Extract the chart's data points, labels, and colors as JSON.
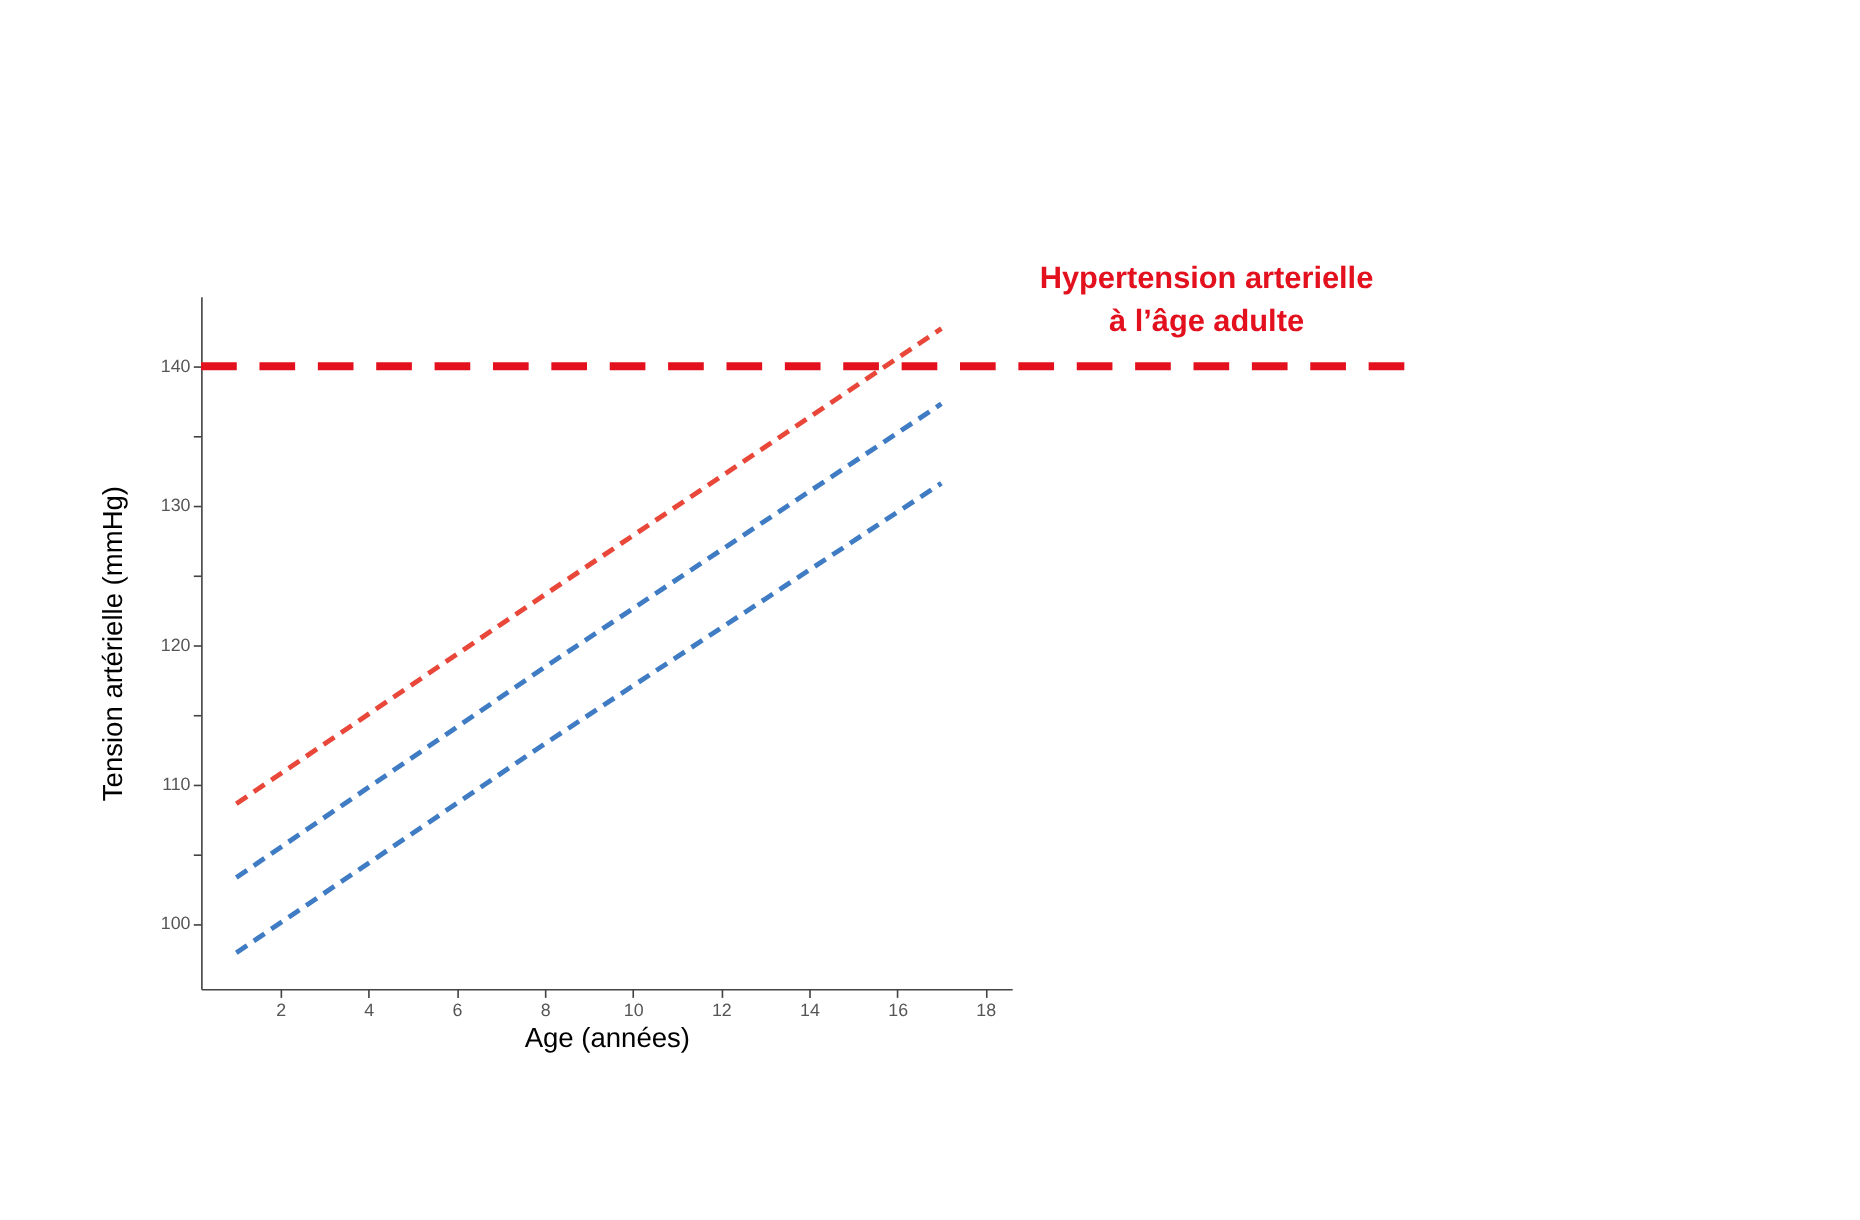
{
  "chart_data": {
    "type": "line",
    "xlabel": "Age (années)",
    "ylabel": "Tension artérielle (mmHg)",
    "line_style": "dashed",
    "marker": "none",
    "grid": false,
    "xlim": [
      0.2,
      18.6
    ],
    "xticks": [
      2,
      4,
      6,
      8,
      10,
      12,
      14,
      16,
      18
    ],
    "ylim": [
      95.3,
      145
    ],
    "yticks": [
      100,
      {
        "value": 105,
        "label": null
      },
      110,
      {
        "value": 115,
        "label": null
      },
      120,
      {
        "value": 125,
        "label": null
      },
      130,
      {
        "value": 135,
        "label": null
      },
      140
    ],
    "series": [
      {
        "color": "#e8473a",
        "x": [
          1,
          8,
          17
        ],
        "values": [
          108.6,
          123.6,
          142.7
        ]
      },
      {
        "color": "#3f7cc4",
        "x": [
          1,
          8,
          17
        ],
        "values": [
          103.3,
          118.4,
          137.3
        ]
      },
      {
        "color": "#3f7cc4",
        "x": [
          1,
          8,
          17
        ],
        "values": [
          97.9,
          112.9,
          131.6
        ]
      }
    ],
    "ref_lines": [
      {
        "axis": "y",
        "value": 140,
        "label": "Hypertension arterielle\nà l’âge adulte",
        "color": "#e3101e",
        "line_style": "dashed"
      }
    ]
  }
}
